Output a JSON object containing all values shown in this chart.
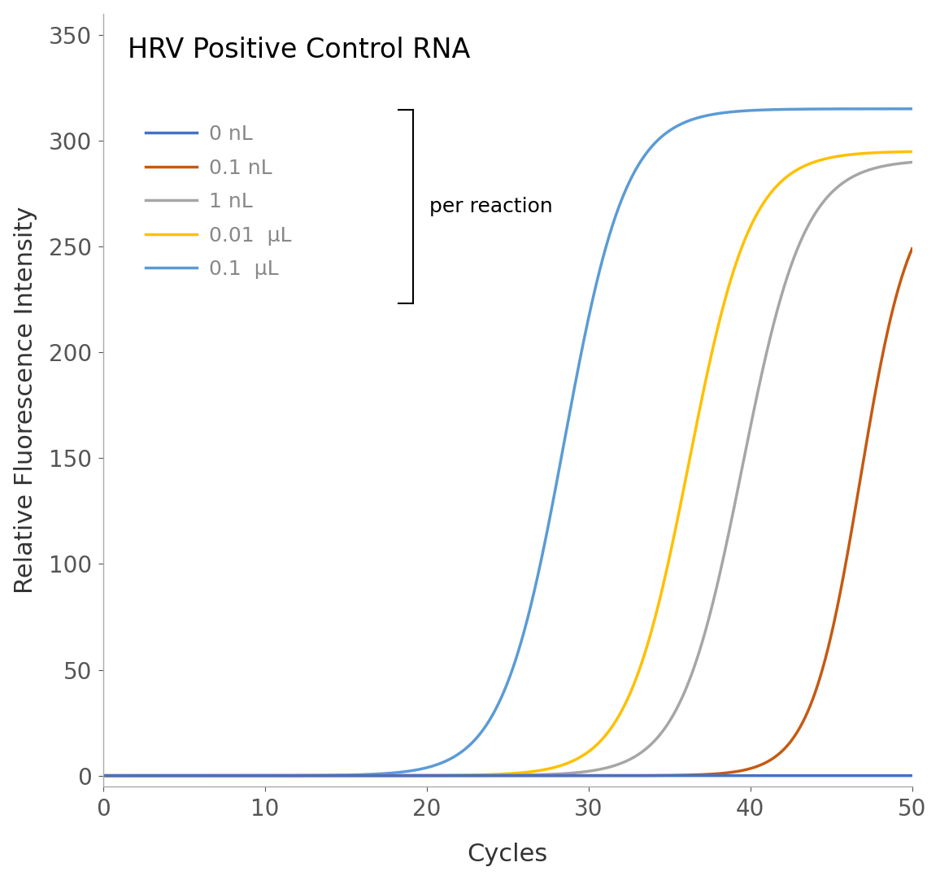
{
  "title": "HRV Positive Control RNA",
  "xlabel": "Cycles",
  "ylabel": "Relative Fluorescence Intensity",
  "xlim": [
    0,
    50
  ],
  "ylim": [
    -5,
    360
  ],
  "xticks": [
    0,
    10,
    20,
    30,
    40,
    50
  ],
  "yticks": [
    0,
    50,
    100,
    150,
    200,
    250,
    300,
    350
  ],
  "series": [
    {
      "label": "0.1 μL",
      "color": "#5B9BD5",
      "midpoint": 28.5,
      "max_val": 315,
      "steepness": 0.52
    },
    {
      "label": "0.01 μL",
      "color": "#FFC000",
      "midpoint": 36.2,
      "max_val": 295,
      "steepness": 0.52
    },
    {
      "label": "1 nL",
      "color": "#A6A6A6",
      "midpoint": 39.5,
      "max_val": 291,
      "steepness": 0.52
    },
    {
      "label": "0.1 nL",
      "color": "#C55A11",
      "midpoint": 46.8,
      "max_val": 280,
      "steepness": 0.65
    },
    {
      "label": "0 nL",
      "color": "#4472C4",
      "midpoint": 999,
      "max_val": 3,
      "steepness": 0.3
    }
  ],
  "legend_entries": [
    {
      "label": "0 nL",
      "color": "#4472C4"
    },
    {
      "label": "0.1 nL",
      "color": "#C55A11"
    },
    {
      "label": "1 nL",
      "color": "#A6A6A6"
    },
    {
      "label": "0.01  μL",
      "color": "#FFC000"
    },
    {
      "label": "0.1  μL",
      "color": "#5B9BD5"
    }
  ],
  "bracket_text": "per reaction",
  "background_color": "#FFFFFF",
  "title_fontsize": 24,
  "axis_label_fontsize": 22,
  "tick_fontsize": 20,
  "legend_fontsize": 18,
  "linewidth": 2.5
}
